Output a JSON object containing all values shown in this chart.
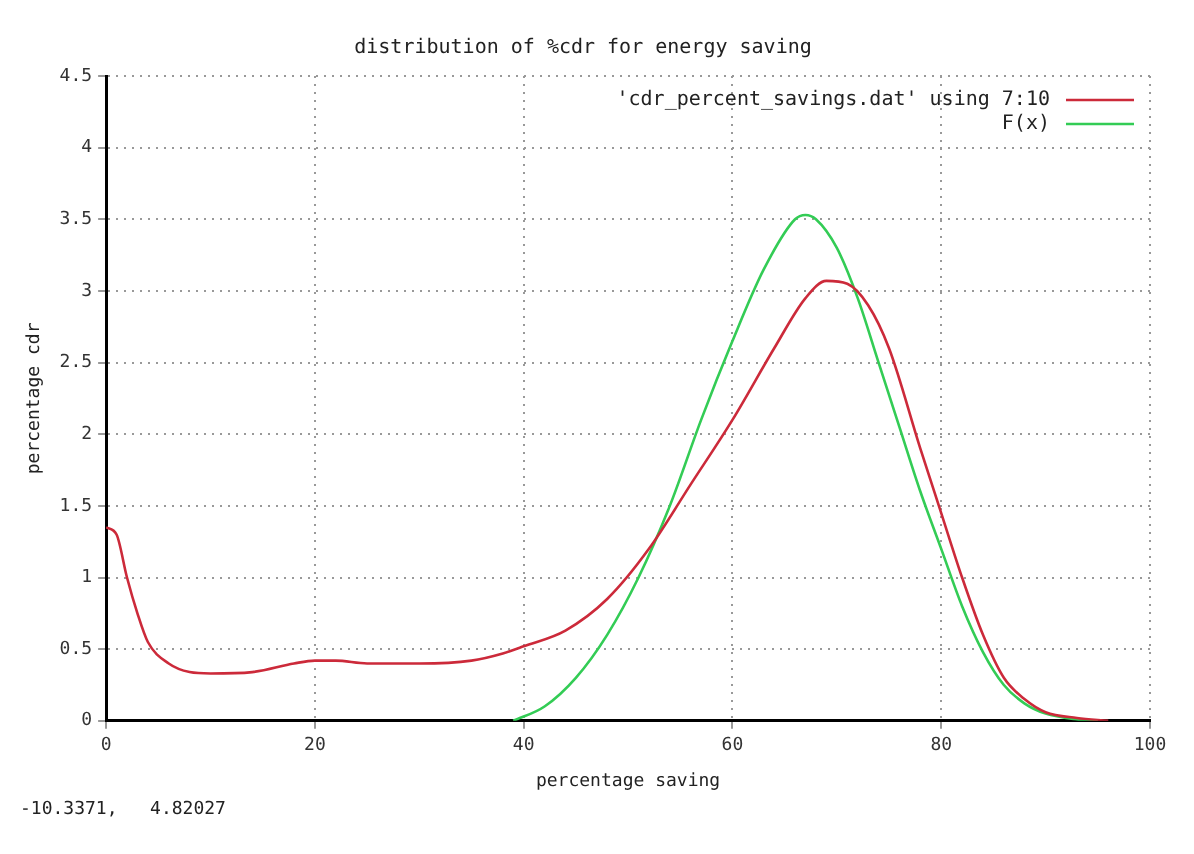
{
  "chart_data": {
    "type": "line",
    "title": "distribution of %cdr for energy saving",
    "xlabel": "percentage saving",
    "ylabel": "percentage cdr",
    "xlim": [
      0,
      100
    ],
    "xticks": [
      0,
      20,
      40,
      60,
      80,
      100
    ],
    "ylim": [
      0,
      4.5
    ],
    "yticks": [
      0,
      0.5,
      1,
      1.5,
      2,
      2.5,
      3,
      3.5,
      4,
      4.5
    ],
    "grid": true,
    "legend": "top right",
    "marker": "none",
    "line_style": "solid",
    "annotations": [
      "-10.3371,   4.82027"
    ],
    "series": [
      {
        "name": "'cdr_percent_savings.dat' using 7:10",
        "color": "#cc2a3a",
        "x": [
          0,
          1,
          2,
          3,
          4,
          6,
          8,
          10,
          14,
          18,
          20,
          22,
          25,
          30,
          35,
          38,
          40,
          44,
          48,
          52,
          56,
          60,
          64,
          67,
          69,
          71,
          73,
          75,
          78,
          80,
          82,
          84,
          86,
          88,
          90,
          93,
          96
        ],
        "values": [
          1.35,
          1.3,
          1.0,
          0.75,
          0.55,
          0.4,
          0.34,
          0.33,
          0.34,
          0.4,
          0.42,
          0.42,
          0.4,
          0.4,
          0.42,
          0.47,
          0.52,
          0.63,
          0.85,
          1.2,
          1.65,
          2.1,
          2.6,
          2.95,
          3.07,
          3.05,
          2.9,
          2.6,
          1.9,
          1.45,
          1.0,
          0.6,
          0.3,
          0.15,
          0.06,
          0.02,
          0
        ]
      },
      {
        "name": "F(x)",
        "color": "#33cc55",
        "x": [
          39,
          42,
          45,
          48,
          51,
          54,
          57,
          60,
          63,
          66,
          67,
          68,
          70,
          72,
          74,
          76,
          78,
          80,
          82,
          84,
          86,
          88,
          90,
          93,
          95
        ],
        "values": [
          0,
          0.1,
          0.3,
          0.6,
          1.0,
          1.5,
          2.1,
          2.65,
          3.15,
          3.5,
          3.53,
          3.5,
          3.3,
          2.95,
          2.5,
          2.05,
          1.6,
          1.2,
          0.8,
          0.48,
          0.25,
          0.12,
          0.05,
          0.01,
          0
        ]
      }
    ]
  }
}
